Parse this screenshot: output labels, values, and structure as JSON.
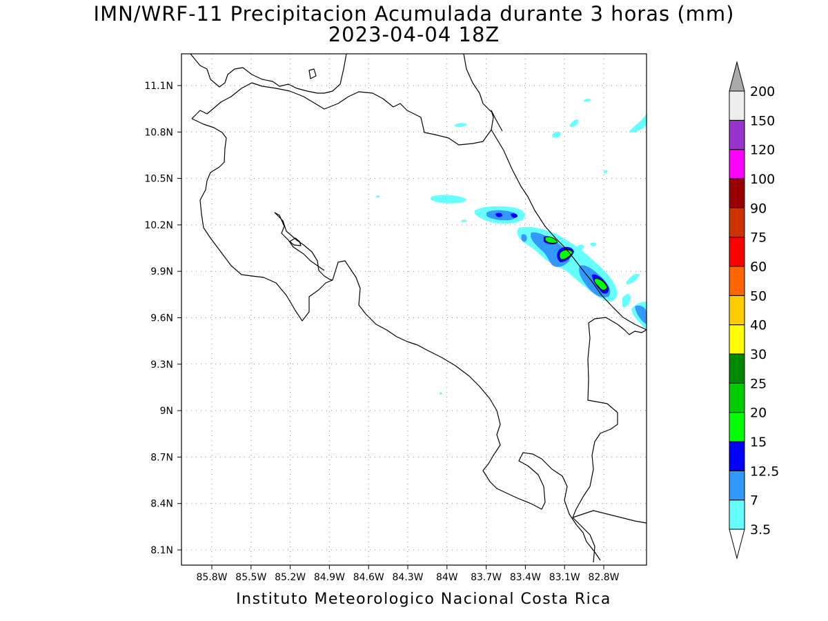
{
  "title": "IMN/WRF-11 Precipitacion Acumulada durante 3 horas (mm)",
  "subtitle": "2023-04-04 18Z",
  "footer": "Instituto Meteorologico Nacional Costa Rica",
  "lat_labels": [
    "11.1N",
    "10.8N",
    "10.5N",
    "10.2N",
    "9.9N",
    "9.6N",
    "9.3N",
    "9N",
    "8.7N",
    "8.4N",
    "8.1N"
  ],
  "lon_labels": [
    "85.8W",
    "85.5W",
    "85.2W",
    "84.9W",
    "84.6W",
    "84.3W",
    "84W",
    "83.7W",
    "83.4W",
    "83.1W",
    "82.8W"
  ],
  "colorbar": {
    "labels": [
      "3.5",
      "7",
      "12.5",
      "15",
      "20",
      "25",
      "30",
      "40",
      "50",
      "60",
      "75",
      "90",
      "100",
      "120",
      "150",
      "200"
    ],
    "colors": [
      "#ffffff",
      "#66ffff",
      "#3399ff",
      "#0000ff",
      "#00ff00",
      "#00cc00",
      "#008800",
      "#ffff00",
      "#ffcc00",
      "#ff6600",
      "#ff0000",
      "#cc3300",
      "#990000",
      "#ff00ff",
      "#9933cc",
      "#eeeeee",
      "#aaaaaa"
    ]
  }
}
